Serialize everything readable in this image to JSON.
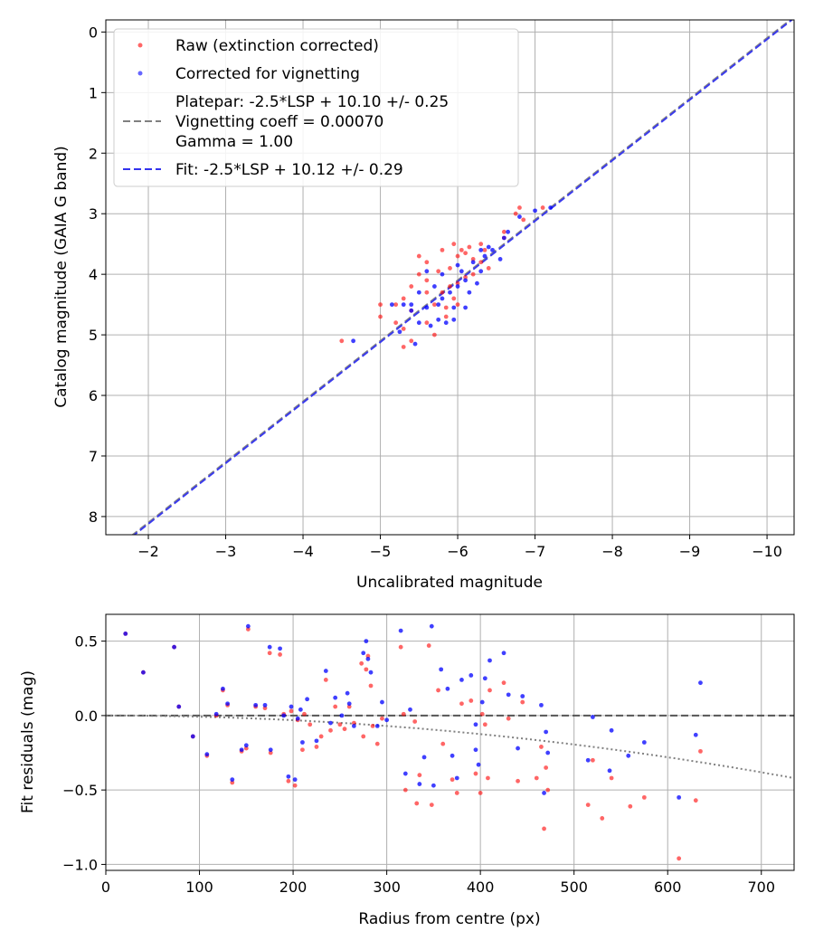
{
  "chart_data": [
    {
      "type": "scatter",
      "xlabel": "Uncalibrated magnitude",
      "ylabel": "Catalog magnitude (GAIA G band)",
      "xlim": [
        -1.45,
        -10.35
      ],
      "ylim": [
        8.3,
        -0.2
      ],
      "x_ticks": [
        -2,
        -3,
        -4,
        -5,
        -6,
        -7,
        -8,
        -9,
        -10
      ],
      "x_tick_labels": [
        "−2",
        "−3",
        "−4",
        "−5",
        "−6",
        "−7",
        "−8",
        "−9",
        "−10"
      ],
      "y_ticks": [
        0,
        1,
        2,
        3,
        4,
        5,
        6,
        7,
        8
      ],
      "y_tick_labels": [
        "0",
        "1",
        "2",
        "3",
        "4",
        "5",
        "6",
        "7",
        "8"
      ],
      "grid": true,
      "legend_position": "upper-left",
      "legend": [
        {
          "label": "Raw (extinction corrected)",
          "kind": "marker",
          "color": "#ff0000"
        },
        {
          "label": "Corrected for vignetting",
          "kind": "marker",
          "color": "#0000ff"
        },
        {
          "lines": [
            "Platepar: -2.5*LSP + 10.10 +/- 0.25",
            "Vignetting coeff = 0.00070",
            "Gamma = 1.00"
          ],
          "kind": "dashed-line",
          "color": "#808080"
        },
        {
          "label": "Fit: -2.5*LSP + 10.12 +/- 0.29",
          "kind": "dashed-line",
          "color": "#3333ee"
        }
      ],
      "lines": [
        {
          "name": "Platepar",
          "slope": 1.0,
          "intercept": 10.1,
          "color": "#808080",
          "style": "dashed"
        },
        {
          "name": "Fit",
          "slope": 1.0,
          "intercept": 10.12,
          "color": "#3333ee",
          "style": "dashed"
        }
      ],
      "series": [
        {
          "name": "Raw (extinction corrected)",
          "color": "#ff0000",
          "points": [
            [
              -4.5,
              5.1
            ],
            [
              -5.0,
              4.5
            ],
            [
              -5.0,
              4.7
            ],
            [
              -5.2,
              4.5
            ],
            [
              -5.3,
              4.4
            ],
            [
              -5.3,
              4.9
            ],
            [
              -5.3,
              5.2
            ],
            [
              -5.4,
              4.2
            ],
            [
              -5.4,
              4.6
            ],
            [
              -5.4,
              5.1
            ],
            [
              -5.5,
              3.7
            ],
            [
              -5.5,
              4.0
            ],
            [
              -5.6,
              3.8
            ],
            [
              -5.6,
              4.3
            ],
            [
              -5.6,
              4.8
            ],
            [
              -5.7,
              4.5
            ],
            [
              -5.7,
              5.0
            ],
            [
              -5.75,
              3.95
            ],
            [
              -5.8,
              3.6
            ],
            [
              -5.8,
              4.3
            ],
            [
              -5.85,
              4.7
            ],
            [
              -5.9,
              3.9
            ],
            [
              -5.9,
              4.2
            ],
            [
              -5.95,
              3.5
            ],
            [
              -5.95,
              4.4
            ],
            [
              -6.0,
              3.7
            ],
            [
              -6.0,
              4.5
            ],
            [
              -6.05,
              3.6
            ],
            [
              -6.1,
              4.05
            ],
            [
              -6.1,
              3.65
            ],
            [
              -6.15,
              3.55
            ],
            [
              -6.2,
              4.0
            ],
            [
              -6.2,
              3.75
            ],
            [
              -6.3,
              3.5
            ],
            [
              -6.3,
              3.8
            ],
            [
              -6.35,
              3.6
            ],
            [
              -6.4,
              3.9
            ],
            [
              -6.6,
              3.4
            ],
            [
              -6.6,
              3.3
            ],
            [
              -6.75,
              3.0
            ],
            [
              -6.8,
              2.9
            ],
            [
              -6.85,
              3.1
            ],
            [
              -7.1,
              2.9
            ],
            [
              -5.2,
              4.8
            ],
            [
              -5.85,
              4.55
            ],
            [
              -5.6,
              4.1
            ],
            [
              -6.0,
              4.15
            ]
          ]
        },
        {
          "name": "Corrected for vignetting",
          "color": "#0000ff",
          "points": [
            [
              -4.65,
              5.1
            ],
            [
              -5.15,
              4.5
            ],
            [
              -5.25,
              4.95
            ],
            [
              -5.3,
              4.5
            ],
            [
              -5.4,
              4.6
            ],
            [
              -5.45,
              5.15
            ],
            [
              -5.5,
              4.3
            ],
            [
              -5.5,
              4.8
            ],
            [
              -5.6,
              3.95
            ],
            [
              -5.6,
              4.55
            ],
            [
              -5.65,
              4.85
            ],
            [
              -5.7,
              4.2
            ],
            [
              -5.75,
              4.75
            ],
            [
              -5.8,
              4.0
            ],
            [
              -5.8,
              4.4
            ],
            [
              -5.85,
              4.8
            ],
            [
              -5.9,
              4.3
            ],
            [
              -5.95,
              4.55
            ],
            [
              -6.0,
              4.2
            ],
            [
              -6.05,
              3.95
            ],
            [
              -6.1,
              4.1
            ],
            [
              -6.15,
              4.3
            ],
            [
              -6.2,
              3.8
            ],
            [
              -6.25,
              4.15
            ],
            [
              -6.3,
              3.95
            ],
            [
              -6.35,
              3.7
            ],
            [
              -6.4,
              3.55
            ],
            [
              -6.45,
              3.6
            ],
            [
              -6.55,
              3.75
            ],
            [
              -6.6,
              3.4
            ],
            [
              -6.65,
              3.3
            ],
            [
              -6.8,
              3.05
            ],
            [
              -7.0,
              2.95
            ],
            [
              -7.2,
              2.9
            ],
            [
              -6.1,
              4.55
            ],
            [
              -5.95,
              4.75
            ],
            [
              -5.4,
              4.5
            ],
            [
              -6.3,
              3.6
            ],
            [
              -6.0,
              3.85
            ],
            [
              -5.75,
              4.5
            ]
          ]
        }
      ]
    },
    {
      "type": "scatter",
      "xlabel": "Radius from centre (px)",
      "ylabel": "Fit residuals (mag)",
      "xlim": [
        0,
        735
      ],
      "ylim": [
        -1.04,
        0.68
      ],
      "x_ticks": [
        0,
        100,
        200,
        300,
        400,
        500,
        600,
        700
      ],
      "x_tick_labels": [
        "0",
        "100",
        "200",
        "300",
        "400",
        "500",
        "600",
        "700"
      ],
      "y_ticks": [
        0.5,
        0.0,
        -0.5,
        -1.0
      ],
      "y_tick_labels": [
        "0.5",
        "0.0",
        "−0.5",
        "−1.0"
      ],
      "grid": true,
      "zero_line": {
        "y": 0.0,
        "color": "#555555",
        "style": "dashed"
      },
      "vignetting_curve": {
        "coefficient": 0.0007,
        "color": "#808080",
        "style": "dotted"
      },
      "series": [
        {
          "name": "Raw (extinction corrected)",
          "color": "#ff0000",
          "points": [
            [
              21,
              0.55
            ],
            [
              40,
              0.29
            ],
            [
              73,
              0.46
            ],
            [
              78,
              0.06
            ],
            [
              93,
              -0.14
            ],
            [
              108,
              -0.27
            ],
            [
              118,
              0.0
            ],
            [
              125,
              0.17
            ],
            [
              130,
              0.07
            ],
            [
              135,
              -0.45
            ],
            [
              145,
              -0.24
            ],
            [
              150,
              -0.22
            ],
            [
              152,
              0.58
            ],
            [
              160,
              0.06
            ],
            [
              170,
              0.05
            ],
            [
              175,
              0.42
            ],
            [
              176,
              -0.25
            ],
            [
              186,
              0.41
            ],
            [
              190,
              0.01
            ],
            [
              195,
              -0.44
            ],
            [
              198,
              0.03
            ],
            [
              202,
              -0.47
            ],
            [
              205,
              -0.03
            ],
            [
              210,
              -0.23
            ],
            [
              212,
              0.01
            ],
            [
              218,
              -0.06
            ],
            [
              225,
              -0.21
            ],
            [
              230,
              -0.14
            ],
            [
              235,
              0.24
            ],
            [
              240,
              -0.1
            ],
            [
              245,
              0.06
            ],
            [
              250,
              -0.06
            ],
            [
              255,
              -0.09
            ],
            [
              260,
              0.06
            ],
            [
              265,
              -0.05
            ],
            [
              273,
              0.35
            ],
            [
              275,
              -0.14
            ],
            [
              278,
              0.31
            ],
            [
              280,
              0.4
            ],
            [
              283,
              0.2
            ],
            [
              285,
              -0.07
            ],
            [
              290,
              -0.19
            ],
            [
              295,
              -0.02
            ],
            [
              315,
              0.46
            ],
            [
              318,
              0.01
            ],
            [
              320,
              -0.5
            ],
            [
              330,
              -0.04
            ],
            [
              332,
              -0.59
            ],
            [
              335,
              -0.4
            ],
            [
              345,
              0.47
            ],
            [
              348,
              -0.6
            ],
            [
              355,
              0.17
            ],
            [
              360,
              -0.19
            ],
            [
              370,
              -0.43
            ],
            [
              375,
              -0.52
            ],
            [
              380,
              0.08
            ],
            [
              390,
              0.1
            ],
            [
              395,
              -0.39
            ],
            [
              400,
              -0.52
            ],
            [
              402,
              0.01
            ],
            [
              405,
              -0.06
            ],
            [
              408,
              -0.42
            ],
            [
              410,
              0.17
            ],
            [
              425,
              0.22
            ],
            [
              430,
              -0.02
            ],
            [
              440,
              -0.44
            ],
            [
              445,
              0.09
            ],
            [
              460,
              -0.42
            ],
            [
              465,
              -0.21
            ],
            [
              468,
              -0.76
            ],
            [
              470,
              -0.35
            ],
            [
              472,
              -0.5
            ],
            [
              520,
              -0.3
            ],
            [
              540,
              -0.42
            ],
            [
              560,
              -0.61
            ],
            [
              575,
              -0.55
            ],
            [
              612,
              -0.96
            ],
            [
              630,
              -0.57
            ],
            [
              635,
              -0.24
            ],
            [
              515,
              -0.6
            ],
            [
              530,
              -0.69
            ]
          ]
        },
        {
          "name": "Corrected for vignetting",
          "color": "#0000ff",
          "points": [
            [
              21,
              0.55
            ],
            [
              40,
              0.29
            ],
            [
              73,
              0.46
            ],
            [
              78,
              0.06
            ],
            [
              93,
              -0.14
            ],
            [
              108,
              -0.26
            ],
            [
              118,
              0.01
            ],
            [
              125,
              0.18
            ],
            [
              130,
              0.08
            ],
            [
              135,
              -0.43
            ],
            [
              145,
              -0.23
            ],
            [
              150,
              -0.2
            ],
            [
              152,
              0.6
            ],
            [
              160,
              0.07
            ],
            [
              170,
              0.07
            ],
            [
              175,
              0.46
            ],
            [
              176,
              -0.23
            ],
            [
              186,
              0.45
            ],
            [
              190,
              0.0
            ],
            [
              195,
              -0.41
            ],
            [
              198,
              0.06
            ],
            [
              202,
              -0.43
            ],
            [
              205,
              -0.02
            ],
            [
              208,
              0.04
            ],
            [
              210,
              -0.18
            ],
            [
              215,
              0.11
            ],
            [
              225,
              -0.17
            ],
            [
              235,
              0.3
            ],
            [
              240,
              -0.05
            ],
            [
              245,
              0.12
            ],
            [
              252,
              0.0
            ],
            [
              258,
              0.15
            ],
            [
              260,
              0.08
            ],
            [
              265,
              -0.07
            ],
            [
              275,
              0.42
            ],
            [
              278,
              0.5
            ],
            [
              280,
              0.38
            ],
            [
              283,
              0.29
            ],
            [
              290,
              -0.07
            ],
            [
              295,
              0.09
            ],
            [
              315,
              0.57
            ],
            [
              320,
              -0.39
            ],
            [
              325,
              0.04
            ],
            [
              335,
              -0.46
            ],
            [
              340,
              -0.28
            ],
            [
              348,
              0.6
            ],
            [
              350,
              -0.47
            ],
            [
              358,
              0.31
            ],
            [
              365,
              0.18
            ],
            [
              370,
              -0.27
            ],
            [
              375,
              -0.42
            ],
            [
              380,
              0.24
            ],
            [
              390,
              0.27
            ],
            [
              395,
              -0.23
            ],
            [
              398,
              -0.33
            ],
            [
              402,
              0.09
            ],
            [
              405,
              0.25
            ],
            [
              410,
              0.37
            ],
            [
              425,
              0.42
            ],
            [
              430,
              0.14
            ],
            [
              440,
              -0.22
            ],
            [
              445,
              0.13
            ],
            [
              465,
              0.07
            ],
            [
              468,
              -0.52
            ],
            [
              470,
              -0.11
            ],
            [
              472,
              -0.25
            ],
            [
              520,
              -0.01
            ],
            [
              540,
              -0.1
            ],
            [
              558,
              -0.27
            ],
            [
              575,
              -0.18
            ],
            [
              612,
              -0.55
            ],
            [
              630,
              -0.13
            ],
            [
              635,
              0.22
            ],
            [
              515,
              -0.3
            ],
            [
              538,
              -0.37
            ],
            [
              395,
              -0.06
            ],
            [
              300,
              -0.03
            ]
          ]
        }
      ]
    }
  ]
}
